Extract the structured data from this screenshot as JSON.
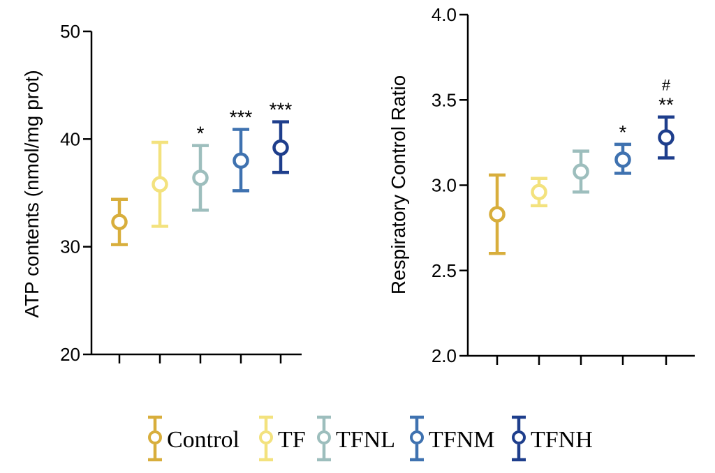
{
  "colors": {
    "Control": "#D8AE3C",
    "TF": "#F3E27E",
    "TFNL": "#9DBEBD",
    "TFNM": "#3F72B0",
    "TFNH": "#1E3E8C"
  },
  "legend": [
    "Control",
    "TF",
    "TFNL",
    "TFNM",
    "TFNH"
  ],
  "chart_data": [
    {
      "type": "scatter",
      "categories": [
        "Control",
        "TF",
        "TFNL",
        "TFNM",
        "TFNH"
      ],
      "ylabel": "ATP contents (nmol/mg prot)",
      "ylim": [
        20,
        50
      ],
      "yticks": [
        20,
        30,
        40,
        50
      ],
      "ytick_labels": [
        "20",
        "30",
        "40",
        "50"
      ],
      "values": [
        32.3,
        35.8,
        36.4,
        38.0,
        39.2
      ],
      "error_low": [
        30.2,
        31.9,
        33.4,
        35.2,
        36.9
      ],
      "error_high": [
        34.4,
        39.7,
        39.4,
        40.9,
        41.6
      ],
      "annotations": [
        "",
        "",
        "*",
        "***",
        "***"
      ]
    },
    {
      "type": "scatter",
      "categories": [
        "Control",
        "TF",
        "TFNL",
        "TFNM",
        "TFNH"
      ],
      "ylabel": "Respiratory Control Ratio",
      "ylim": [
        2.0,
        4.0
      ],
      "yticks": [
        2.0,
        2.5,
        3.0,
        3.5,
        4.0
      ],
      "ytick_labels": [
        "2.0",
        "2.5",
        "3.0",
        "3.5",
        "4.0"
      ],
      "values": [
        2.83,
        2.96,
        3.08,
        3.15,
        3.28
      ],
      "error_low": [
        2.6,
        2.88,
        2.96,
        3.07,
        3.16
      ],
      "error_high": [
        3.06,
        3.04,
        3.2,
        3.24,
        3.4
      ],
      "annotations": [
        "",
        "",
        "",
        "*",
        "**"
      ],
      "annotations_extra": [
        "",
        "",
        "",
        "",
        "#"
      ]
    }
  ]
}
